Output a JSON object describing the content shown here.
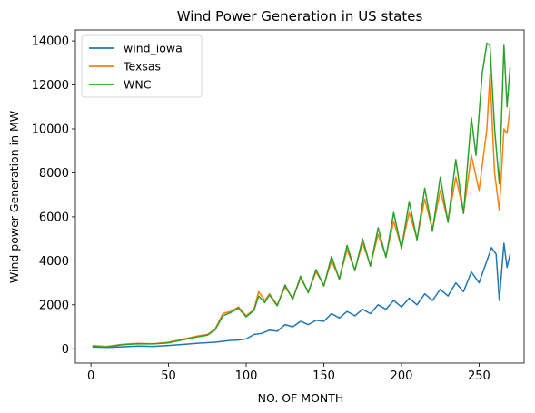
{
  "chart_data": {
    "type": "line",
    "title": "Wind Power Generation in US states",
    "xlabel": "NO. OF MONTH",
    "ylabel": "Wind power Generation in MW",
    "xlim": [
      -10,
      279
    ],
    "ylim": [
      -650,
      14500
    ],
    "xticks": [
      0,
      50,
      100,
      150,
      200,
      250
    ],
    "yticks": [
      0,
      2000,
      4000,
      6000,
      8000,
      10000,
      12000,
      14000
    ],
    "grid": false,
    "legend_position": "top-left",
    "series": [
      {
        "name": "wind_iowa",
        "color": "#1f77b4",
        "points": [
          [
            1,
            80
          ],
          [
            10,
            60
          ],
          [
            20,
            90
          ],
          [
            30,
            120
          ],
          [
            40,
            110
          ],
          [
            50,
            150
          ],
          [
            60,
            200
          ],
          [
            70,
            260
          ],
          [
            80,
            300
          ],
          [
            90,
            380
          ],
          [
            95,
            400
          ],
          [
            100,
            450
          ],
          [
            105,
            650
          ],
          [
            110,
            700
          ],
          [
            115,
            850
          ],
          [
            120,
            800
          ],
          [
            125,
            1100
          ],
          [
            130,
            1000
          ],
          [
            135,
            1250
          ],
          [
            140,
            1100
          ],
          [
            145,
            1300
          ],
          [
            150,
            1250
          ],
          [
            155,
            1600
          ],
          [
            160,
            1400
          ],
          [
            165,
            1700
          ],
          [
            170,
            1500
          ],
          [
            175,
            1800
          ],
          [
            180,
            1600
          ],
          [
            185,
            2000
          ],
          [
            190,
            1800
          ],
          [
            195,
            2200
          ],
          [
            200,
            1900
          ],
          [
            205,
            2300
          ],
          [
            210,
            2000
          ],
          [
            215,
            2500
          ],
          [
            220,
            2200
          ],
          [
            225,
            2700
          ],
          [
            230,
            2400
          ],
          [
            235,
            3000
          ],
          [
            240,
            2600
          ],
          [
            245,
            3500
          ],
          [
            250,
            3000
          ],
          [
            255,
            4000
          ],
          [
            258,
            4600
          ],
          [
            261,
            4300
          ],
          [
            263,
            2200
          ],
          [
            266,
            4800
          ],
          [
            268,
            3700
          ],
          [
            270,
            4300
          ]
        ]
      },
      {
        "name": "Texsas",
        "color": "#ff7f0e",
        "points": [
          [
            1,
            150
          ],
          [
            10,
            100
          ],
          [
            20,
            200
          ],
          [
            30,
            250
          ],
          [
            40,
            230
          ],
          [
            50,
            300
          ],
          [
            60,
            450
          ],
          [
            70,
            600
          ],
          [
            75,
            650
          ],
          [
            80,
            900
          ],
          [
            85,
            1600
          ],
          [
            90,
            1700
          ],
          [
            95,
            1900
          ],
          [
            100,
            1500
          ],
          [
            105,
            1800
          ],
          [
            108,
            2600
          ],
          [
            112,
            2200
          ],
          [
            115,
            2500
          ],
          [
            120,
            2000
          ],
          [
            125,
            2800
          ],
          [
            130,
            2300
          ],
          [
            135,
            3200
          ],
          [
            140,
            2600
          ],
          [
            145,
            3500
          ],
          [
            150,
            2900
          ],
          [
            155,
            4000
          ],
          [
            160,
            3200
          ],
          [
            165,
            4500
          ],
          [
            170,
            3600
          ],
          [
            175,
            4800
          ],
          [
            180,
            3800
          ],
          [
            185,
            5200
          ],
          [
            190,
            4200
          ],
          [
            195,
            5800
          ],
          [
            200,
            4600
          ],
          [
            205,
            6200
          ],
          [
            210,
            5000
          ],
          [
            215,
            6800
          ],
          [
            220,
            5400
          ],
          [
            225,
            7200
          ],
          [
            230,
            5800
          ],
          [
            235,
            7800
          ],
          [
            240,
            6200
          ],
          [
            245,
            8800
          ],
          [
            250,
            7200
          ],
          [
            255,
            10000
          ],
          [
            257,
            12500
          ],
          [
            260,
            8000
          ],
          [
            263,
            6300
          ],
          [
            266,
            10000
          ],
          [
            268,
            9800
          ],
          [
            270,
            11000
          ]
        ]
      },
      {
        "name": "WNC",
        "color": "#2ca02c",
        "points": [
          [
            1,
            110
          ],
          [
            10,
            80
          ],
          [
            20,
            180
          ],
          [
            30,
            230
          ],
          [
            40,
            220
          ],
          [
            50,
            270
          ],
          [
            60,
            420
          ],
          [
            70,
            560
          ],
          [
            75,
            620
          ],
          [
            80,
            860
          ],
          [
            85,
            1500
          ],
          [
            90,
            1650
          ],
          [
            95,
            1850
          ],
          [
            100,
            1450
          ],
          [
            105,
            1750
          ],
          [
            108,
            2400
          ],
          [
            112,
            2100
          ],
          [
            115,
            2450
          ],
          [
            120,
            1950
          ],
          [
            125,
            2900
          ],
          [
            130,
            2250
          ],
          [
            135,
            3300
          ],
          [
            140,
            2550
          ],
          [
            145,
            3600
          ],
          [
            150,
            2850
          ],
          [
            155,
            4200
          ],
          [
            160,
            3150
          ],
          [
            165,
            4700
          ],
          [
            170,
            3550
          ],
          [
            175,
            5000
          ],
          [
            180,
            3750
          ],
          [
            185,
            5500
          ],
          [
            190,
            4150
          ],
          [
            195,
            6200
          ],
          [
            200,
            4550
          ],
          [
            205,
            6700
          ],
          [
            210,
            4950
          ],
          [
            215,
            7300
          ],
          [
            220,
            5350
          ],
          [
            225,
            7800
          ],
          [
            230,
            5750
          ],
          [
            235,
            8600
          ],
          [
            240,
            6150
          ],
          [
            245,
            10500
          ],
          [
            248,
            8800
          ],
          [
            252,
            12500
          ],
          [
            255,
            13900
          ],
          [
            257,
            13800
          ],
          [
            260,
            10000
          ],
          [
            263,
            7500
          ],
          [
            266,
            13800
          ],
          [
            268,
            11000
          ],
          [
            270,
            12800
          ]
        ]
      }
    ]
  }
}
